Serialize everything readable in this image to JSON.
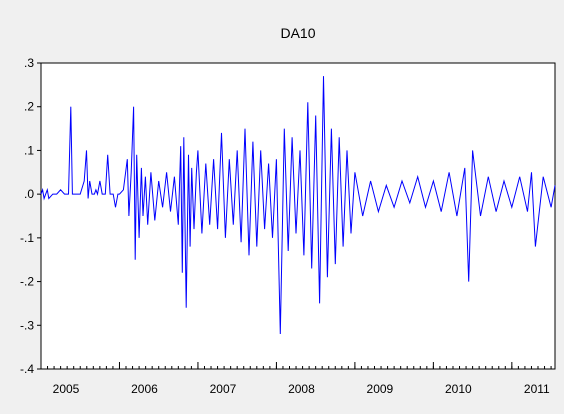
{
  "chart_data": {
    "type": "line",
    "title": "DA10",
    "xlabel": "",
    "ylabel": "",
    "xlim": [
      2005.0,
      2011.55
    ],
    "ylim": [
      -0.4,
      0.3
    ],
    "y_ticks": [
      -0.4,
      -0.3,
      -0.2,
      -0.1,
      0.0,
      0.1,
      0.2,
      0.3
    ],
    "y_tick_labels": [
      "-.4",
      "-.3",
      "-.2",
      "-.1",
      ".0",
      ".1",
      ".2",
      ".3"
    ],
    "x_tick_labels": [
      "2005",
      "2006",
      "2007",
      "2008",
      "2009",
      "2010",
      "2011"
    ],
    "x_ticks": [
      2005,
      2006,
      2007,
      2008,
      2009,
      2010,
      2011
    ],
    "grid": false,
    "series": [
      {
        "color": "#0000ff",
        "x": [
          2005.0,
          2005.02,
          2005.04,
          2005.06,
          2005.08,
          2005.1,
          2005.15,
          2005.2,
          2005.25,
          2005.3,
          2005.35,
          2005.38,
          2005.4,
          2005.42,
          2005.45,
          2005.5,
          2005.55,
          2005.58,
          2005.6,
          2005.62,
          2005.65,
          2005.68,
          2005.7,
          2005.72,
          2005.75,
          2005.78,
          2005.8,
          2005.82,
          2005.85,
          2005.88,
          2005.9,
          2005.92,
          2005.95,
          2005.98,
          2006.0,
          2006.05,
          2006.1,
          2006.12,
          2006.15,
          2006.18,
          2006.2,
          2006.22,
          2006.25,
          2006.28,
          2006.3,
          2006.33,
          2006.36,
          2006.4,
          2006.45,
          2006.5,
          2006.55,
          2006.6,
          2006.65,
          2006.7,
          2006.75,
          2006.78,
          2006.8,
          2006.82,
          2006.85,
          2006.88,
          2006.9,
          2006.92,
          2006.95,
          2006.98,
          2007.0,
          2007.05,
          2007.1,
          2007.15,
          2007.2,
          2007.25,
          2007.3,
          2007.35,
          2007.4,
          2007.45,
          2007.5,
          2007.55,
          2007.6,
          2007.65,
          2007.7,
          2007.75,
          2007.8,
          2007.85,
          2007.9,
          2007.95,
          2008.0,
          2008.05,
          2008.1,
          2008.15,
          2008.2,
          2008.25,
          2008.3,
          2008.35,
          2008.4,
          2008.45,
          2008.5,
          2008.55,
          2008.6,
          2008.65,
          2008.7,
          2008.75,
          2008.8,
          2008.85,
          2008.9,
          2008.95,
          2009.0,
          2009.1,
          2009.2,
          2009.3,
          2009.4,
          2009.5,
          2009.6,
          2009.7,
          2009.8,
          2009.9,
          2010.0,
          2010.1,
          2010.2,
          2010.3,
          2010.4,
          2010.45,
          2010.5,
          2010.6,
          2010.7,
          2010.8,
          2010.9,
          2011.0,
          2011.1,
          2011.2,
          2011.25,
          2011.3,
          2011.4,
          2011.5,
          2011.55
        ],
        "y": [
          0.0,
          0.01,
          -0.01,
          0.0,
          0.01,
          -0.01,
          0.0,
          0.0,
          0.01,
          0.0,
          0.0,
          0.2,
          0.0,
          0.0,
          0.0,
          0.0,
          0.03,
          0.1,
          -0.01,
          0.03,
          0.0,
          0.0,
          0.01,
          0.0,
          0.03,
          0.0,
          0.0,
          0.0,
          0.09,
          0.0,
          0.0,
          0.0,
          -0.03,
          0.0,
          0.0,
          0.01,
          0.08,
          -0.05,
          0.05,
          0.2,
          -0.15,
          0.09,
          -0.1,
          0.06,
          -0.05,
          0.04,
          -0.07,
          0.05,
          -0.06,
          0.03,
          -0.03,
          0.05,
          -0.04,
          0.04,
          -0.07,
          0.11,
          -0.18,
          0.13,
          -0.26,
          0.09,
          -0.12,
          0.06,
          -0.08,
          0.05,
          0.1,
          -0.09,
          0.07,
          -0.07,
          0.08,
          -0.08,
          0.14,
          -0.1,
          0.08,
          -0.07,
          0.1,
          -0.11,
          0.15,
          -0.14,
          0.12,
          -0.12,
          0.1,
          -0.08,
          0.07,
          -0.1,
          0.08,
          -0.32,
          0.15,
          -0.13,
          0.13,
          -0.09,
          0.1,
          -0.14,
          0.21,
          -0.17,
          0.18,
          -0.25,
          0.27,
          -0.19,
          0.15,
          -0.16,
          0.13,
          -0.12,
          0.1,
          -0.09,
          0.05,
          -0.05,
          0.03,
          -0.04,
          0.02,
          -0.03,
          0.03,
          -0.02,
          0.04,
          -0.03,
          0.03,
          -0.04,
          0.05,
          -0.05,
          0.06,
          -0.2,
          0.1,
          -0.05,
          0.04,
          -0.04,
          0.03,
          -0.03,
          0.04,
          -0.04,
          0.05,
          -0.12,
          0.04,
          -0.03,
          0.02
        ]
      }
    ]
  }
}
